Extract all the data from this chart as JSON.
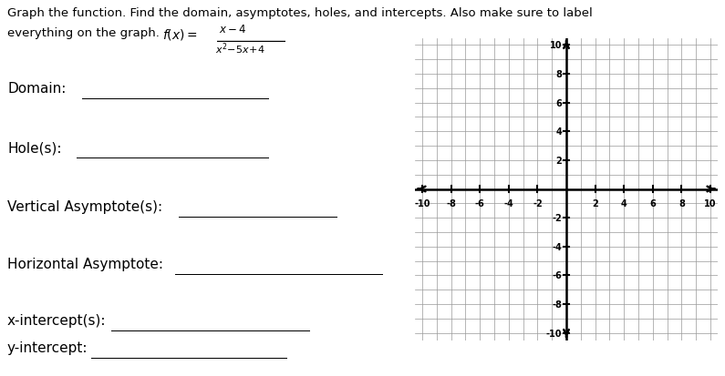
{
  "title_line1": "Graph the function. Find the domain, asymptotes, holes, and intercepts. Also make sure to label",
  "title_line2_pre": "everything on the graph. ",
  "labels": [
    "Domain:",
    "Hole(s):",
    "Vertical Asymptote(s):",
    "Horizontal Asymptote:",
    "x-intercept(s):",
    "y-intercept:"
  ],
  "axis_range": [
    -10,
    10
  ],
  "axis_ticks": [
    -10,
    -8,
    -6,
    -4,
    -2,
    2,
    4,
    6,
    8,
    10
  ],
  "background_color": "#ffffff",
  "grid_color": "#999999",
  "axis_color": "#000000",
  "text_color": "#000000",
  "line_underline_color": "#000000",
  "fig_width": 7.95,
  "fig_height": 4.14,
  "fig_dpi": 100
}
